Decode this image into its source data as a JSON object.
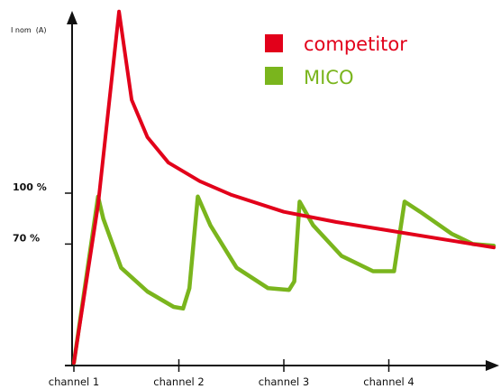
{
  "chart_data": {
    "type": "line",
    "ylabel": "I nom  (A)",
    "categories": [
      "channel 1",
      "channel 2",
      "channel 3",
      "channel 4"
    ],
    "y_ticks": [
      {
        "label": "100 %",
        "value": 100
      },
      {
        "label": "70 %",
        "value": 70
      }
    ],
    "ylim": [
      0,
      210
    ],
    "xlim": [
      0,
      4
    ],
    "grid": false,
    "legend_placement": "top-right",
    "series": [
      {
        "name": "competitor",
        "color": "#e2001a",
        "points": [
          [
            0,
            0
          ],
          [
            0.23,
            93
          ],
          [
            0.43,
            207
          ],
          [
            0.55,
            155
          ],
          [
            0.7,
            133
          ],
          [
            0.9,
            118
          ],
          [
            1.2,
            107
          ],
          [
            1.5,
            99
          ],
          [
            2.0,
            89
          ],
          [
            2.5,
            83
          ],
          [
            3.0,
            78
          ],
          [
            3.5,
            73
          ],
          [
            4.0,
            68
          ]
        ]
      },
      {
        "name": "MICO",
        "color": "#7ab51d",
        "points": [
          [
            0,
            0
          ],
          [
            0.23,
            98
          ],
          [
            0.28,
            85
          ],
          [
            0.45,
            56
          ],
          [
            0.7,
            42
          ],
          [
            0.95,
            33
          ],
          [
            1.04,
            32
          ],
          [
            1.1,
            44
          ],
          [
            1.18,
            98
          ],
          [
            1.3,
            81
          ],
          [
            1.55,
            56
          ],
          [
            1.85,
            44
          ],
          [
            2.05,
            43
          ],
          [
            2.1,
            48
          ],
          [
            2.15,
            95
          ],
          [
            2.28,
            81
          ],
          [
            2.55,
            63
          ],
          [
            2.85,
            54
          ],
          [
            3.05,
            54
          ],
          [
            3.15,
            95
          ],
          [
            3.3,
            89
          ],
          [
            3.6,
            76
          ],
          [
            3.8,
            70
          ],
          [
            4.0,
            69
          ]
        ]
      }
    ]
  }
}
